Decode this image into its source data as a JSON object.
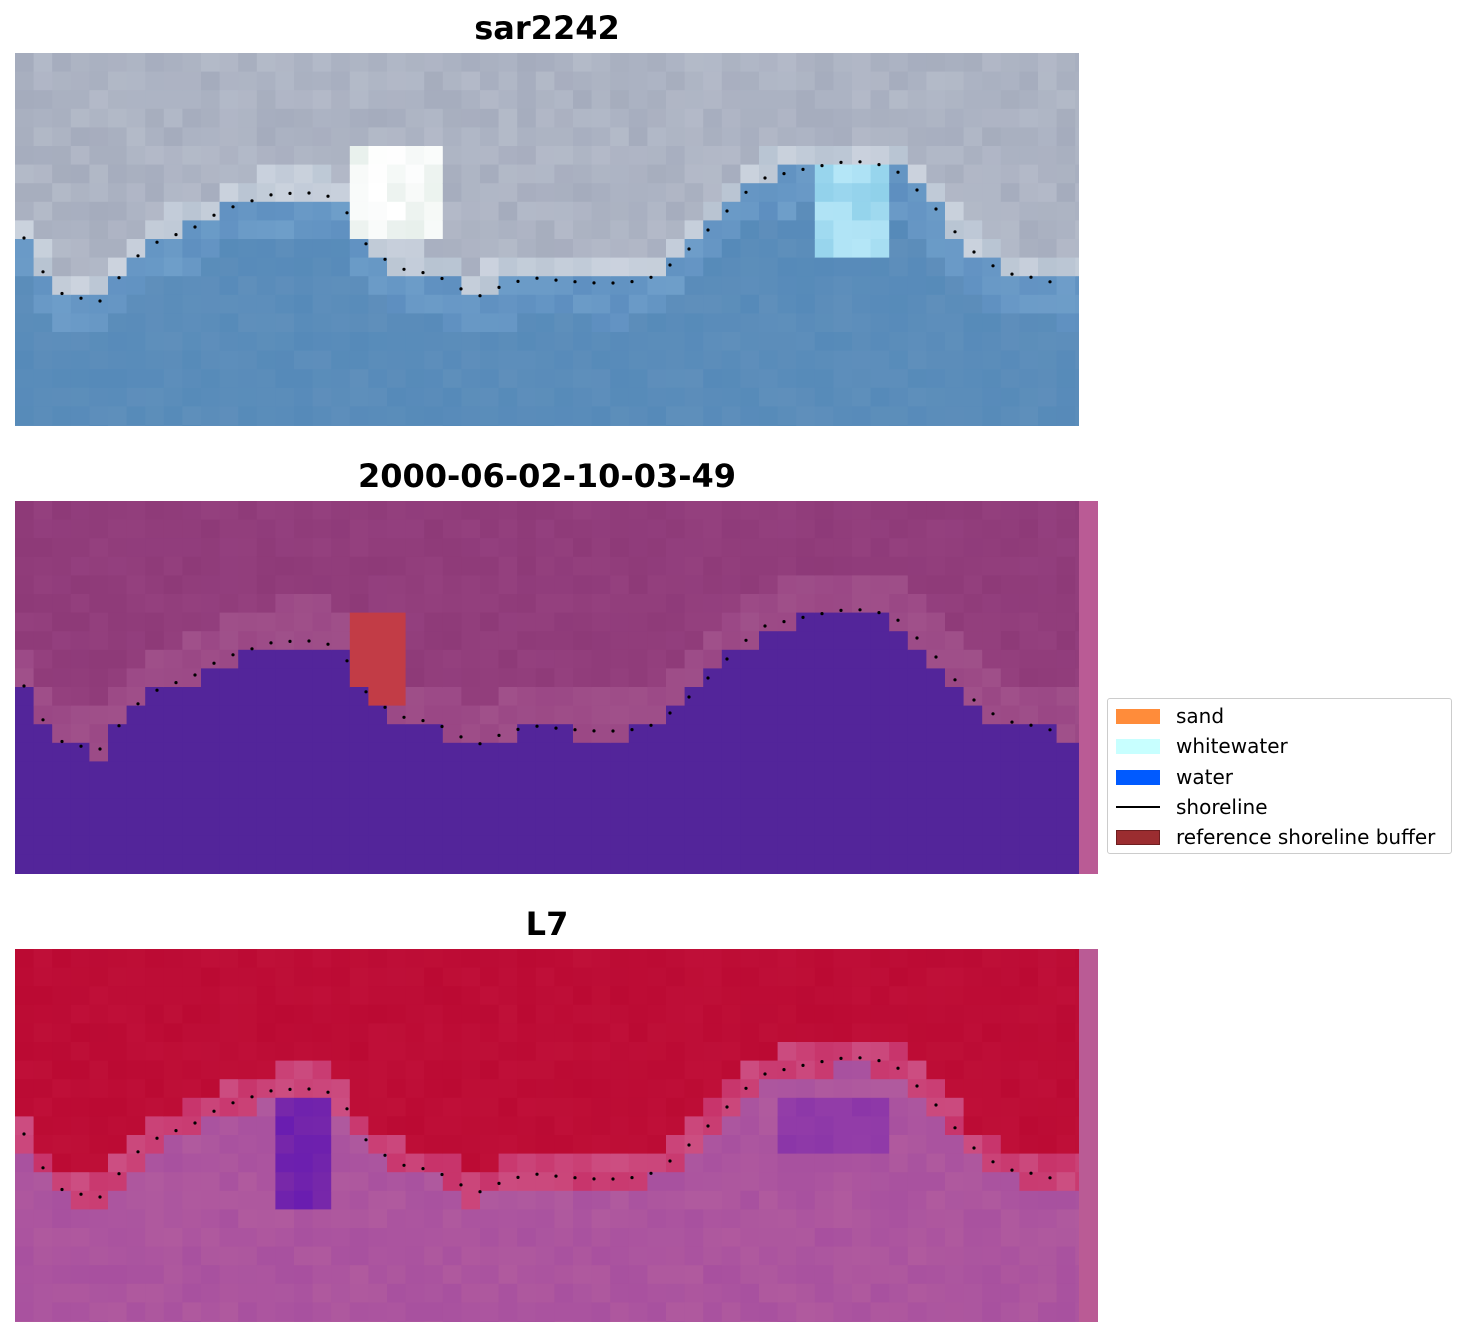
{
  "figure": {
    "panels": [
      {
        "title": "sar2242",
        "kind": "rgb"
      },
      {
        "title": "2000-06-02-10-03-49",
        "kind": "classification"
      },
      {
        "title": "L7",
        "kind": "index"
      }
    ]
  },
  "legend": {
    "items": [
      {
        "label": "sand",
        "color": "#ff8c3a",
        "type": "patch"
      },
      {
        "label": "whitewater",
        "color": "#c8ffff",
        "type": "patch"
      },
      {
        "label": "water",
        "color": "#005aff",
        "type": "patch"
      },
      {
        "label": "shoreline",
        "color": "#000000",
        "type": "line"
      },
      {
        "label": "reference shoreline buffer",
        "color": "#9b2d30",
        "type": "patch"
      }
    ]
  },
  "colors": {
    "rgb_land": "#a5acbd",
    "rgb_water": "#5f8fbb",
    "class_land": "#8e3a78",
    "class_water": "#53259a",
    "class_buffer": "#c23c46",
    "index_land": "#bb0a33",
    "index_water": "#b05a9e",
    "strip": "#ba5b95"
  }
}
